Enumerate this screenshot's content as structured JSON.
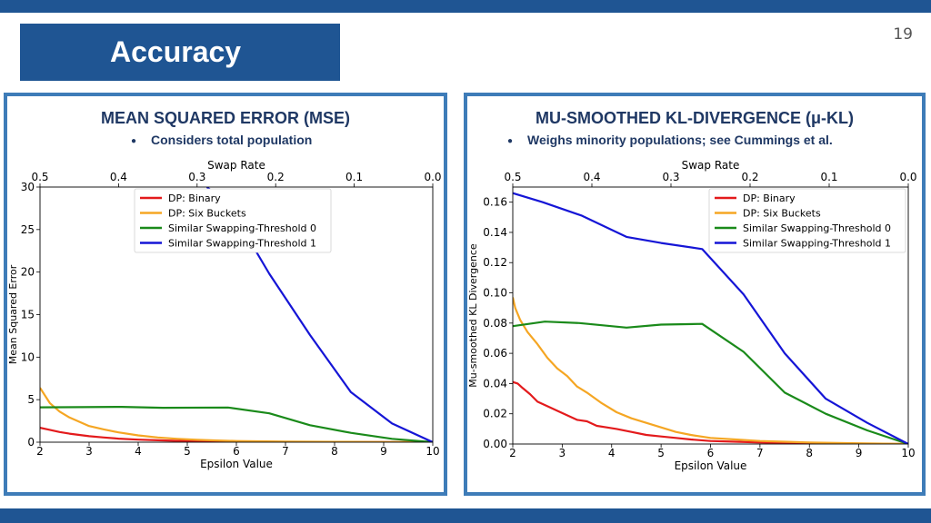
{
  "page": {
    "number": "19",
    "title": "Accuracy"
  },
  "left_panel": {
    "heading": "MEAN SQUARED ERROR (MSE)",
    "bullet": "Considers total population"
  },
  "right_panel": {
    "heading": "MU-SMOOTHED KL-DIVERGENCE (μ-KL)",
    "bullet": "Weighs minority populations; see Cummings et al."
  },
  "colors": {
    "brand": "#1f5593",
    "panel_border": "#3e7cb8",
    "heading": "#1f3864"
  },
  "chart_data": [
    {
      "type": "line",
      "xlabel": "Epsilon Value",
      "ylabel": "Mean Squared Error",
      "x2label": "Swap Rate",
      "xlim": [
        2,
        10
      ],
      "ylim": [
        0,
        30
      ],
      "x2lim": [
        0.5,
        0.0
      ],
      "xticks": [
        "2",
        "3",
        "4",
        "5",
        "6",
        "7",
        "8",
        "9",
        "10"
      ],
      "yticks": [
        "0",
        "5",
        "10",
        "15",
        "20",
        "25",
        "30"
      ],
      "x2ticks": [
        "0.5",
        "0.4",
        "0.3",
        "0.2",
        "0.1",
        "0.0"
      ],
      "legend_position": "top-right",
      "series": [
        {
          "name": "DP: Binary",
          "color": "#e31a1c",
          "x": [
            2,
            2.2,
            2.4,
            2.6,
            2.8,
            3,
            3.3,
            3.6,
            4,
            4.4,
            4.8,
            5.2,
            5.6,
            6,
            7,
            8,
            9,
            10
          ],
          "y": [
            1.7,
            1.45,
            1.2,
            1.0,
            0.85,
            0.7,
            0.55,
            0.42,
            0.3,
            0.22,
            0.16,
            0.12,
            0.09,
            0.07,
            0.04,
            0.02,
            0.01,
            0
          ]
        },
        {
          "name": "DP: Six Buckets",
          "color": "#f5a623",
          "x": [
            2,
            2.1,
            2.2,
            2.4,
            2.6,
            2.8,
            3,
            3.3,
            3.6,
            4,
            4.4,
            4.8,
            5.2,
            5.6,
            6,
            7,
            8,
            9,
            10
          ],
          "y": [
            6.4,
            5.5,
            4.6,
            3.6,
            2.9,
            2.4,
            1.9,
            1.5,
            1.15,
            0.8,
            0.55,
            0.4,
            0.28,
            0.2,
            0.14,
            0.08,
            0.04,
            0.02,
            0
          ]
        },
        {
          "name": "Similar Swapping-Threshold 0",
          "color": "#1a8a1a",
          "x": [
            2,
            2.83,
            3.67,
            4.5,
            5.83,
            6.67,
            7.5,
            8.33,
            9.17,
            10
          ],
          "y": [
            4.1,
            4.12,
            4.15,
            4.05,
            4.08,
            3.4,
            2.0,
            1.1,
            0.4,
            0
          ]
        },
        {
          "name": "Similar Swapping-Threshold 1",
          "color": "#1515d6",
          "x": [
            5.4,
            5.83,
            6.67,
            7.5,
            8.33,
            9.17,
            10
          ],
          "y": [
            30,
            28,
            19.8,
            12.6,
            5.9,
            2.2,
            0
          ]
        }
      ]
    },
    {
      "type": "line",
      "xlabel": "Epsilon Value",
      "ylabel": "Mu-smoothed KL Divergence",
      "x2label": "Swap Rate",
      "xlim": [
        2,
        10
      ],
      "ylim": [
        0,
        0.17
      ],
      "x2lim": [
        0.5,
        0.0
      ],
      "xticks": [
        "2",
        "3",
        "4",
        "5",
        "6",
        "7",
        "8",
        "9",
        "10"
      ],
      "yticks": [
        "0.00",
        "0.02",
        "0.04",
        "0.06",
        "0.08",
        "0.10",
        "0.12",
        "0.14",
        "0.16"
      ],
      "x2ticks": [
        "0.5",
        "0.4",
        "0.3",
        "0.2",
        "0.1",
        "0.0"
      ],
      "legend_position": "top-right",
      "series": [
        {
          "name": "DP: Binary",
          "color": "#e31a1c",
          "x": [
            2,
            2.1,
            2.2,
            2.35,
            2.5,
            2.7,
            2.9,
            3.1,
            3.3,
            3.5,
            3.7,
            3.9,
            4.1,
            4.4,
            4.7,
            5,
            5.3,
            5.6,
            6,
            6.5,
            7,
            8,
            9,
            10
          ],
          "y": [
            0.041,
            0.04,
            0.037,
            0.033,
            0.028,
            0.025,
            0.022,
            0.019,
            0.016,
            0.015,
            0.012,
            0.011,
            0.01,
            0.008,
            0.006,
            0.005,
            0.004,
            0.003,
            0.002,
            0.0015,
            0.001,
            0.0005,
            0.0002,
            0
          ]
        },
        {
          "name": "DP: Six Buckets",
          "color": "#f5a623",
          "x": [
            2,
            2.05,
            2.15,
            2.3,
            2.5,
            2.7,
            2.9,
            3.1,
            3.3,
            3.5,
            3.8,
            4.1,
            4.4,
            4.7,
            5,
            5.3,
            5.6,
            6,
            6.5,
            7,
            7.5,
            8,
            9,
            10
          ],
          "y": [
            0.097,
            0.09,
            0.082,
            0.074,
            0.066,
            0.057,
            0.05,
            0.045,
            0.038,
            0.034,
            0.027,
            0.021,
            0.017,
            0.014,
            0.011,
            0.008,
            0.006,
            0.004,
            0.003,
            0.002,
            0.0015,
            0.001,
            0.0005,
            0
          ]
        },
        {
          "name": "Similar Swapping-Threshold 0",
          "color": "#1a8a1a",
          "x": [
            2,
            2.65,
            3.35,
            4.3,
            5.0,
            5.83,
            6.67,
            7.5,
            8.33,
            9.17,
            10
          ],
          "y": [
            0.078,
            0.081,
            0.08,
            0.077,
            0.079,
            0.0795,
            0.061,
            0.034,
            0.02,
            0.009,
            0
          ]
        },
        {
          "name": "Similar Swapping-Threshold 1",
          "color": "#1515d6",
          "x": [
            2,
            2.6,
            3.4,
            4.3,
            5.0,
            5.83,
            6.67,
            7.5,
            8.33,
            9.17,
            10
          ],
          "y": [
            0.166,
            0.16,
            0.151,
            0.137,
            0.133,
            0.129,
            0.099,
            0.06,
            0.03,
            0.014,
            0
          ]
        }
      ]
    }
  ]
}
